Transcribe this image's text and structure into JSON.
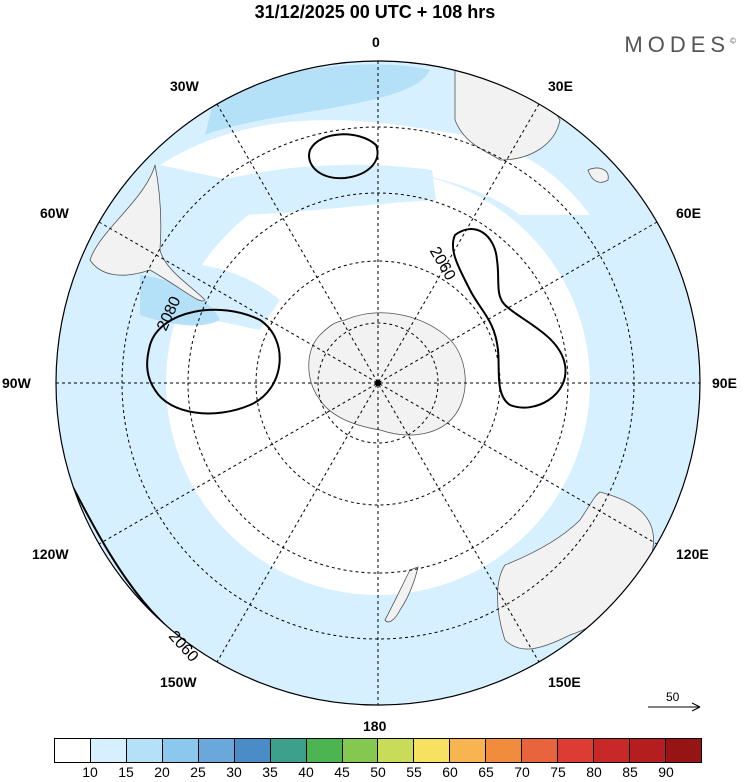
{
  "title": "31/12/2025  00 UTC  + 108 hrs",
  "brand": "MODES",
  "brand_mark": "©",
  "longitude_labels": {
    "top": "0",
    "bottom": "180",
    "left": "90W",
    "right": "90E",
    "30w": "30W",
    "30e": "30E",
    "60w": "60W",
    "60e": "60E",
    "120w": "120W",
    "120e": "120E",
    "150w": "150W",
    "150e": "150E"
  },
  "contour_labels": [
    "2080",
    "2060",
    "2060"
  ],
  "reference_vector": "50",
  "colorbar": {
    "colors": [
      "#ffffff",
      "#d6f0ff",
      "#b4e0f8",
      "#8cc8ee",
      "#6aa8dc",
      "#4a8cc8",
      "#3ca08c",
      "#4cb450",
      "#84c850",
      "#c8dc5a",
      "#f8e060",
      "#f8b450",
      "#f08c3c",
      "#e8643c",
      "#dc3c34",
      "#c82828",
      "#b41e1e",
      "#961414"
    ],
    "ticks": [
      "10",
      "15",
      "20",
      "25",
      "30",
      "35",
      "40",
      "45",
      "50",
      "55",
      "60",
      "65",
      "70",
      "75",
      "80",
      "85",
      "90"
    ]
  }
}
